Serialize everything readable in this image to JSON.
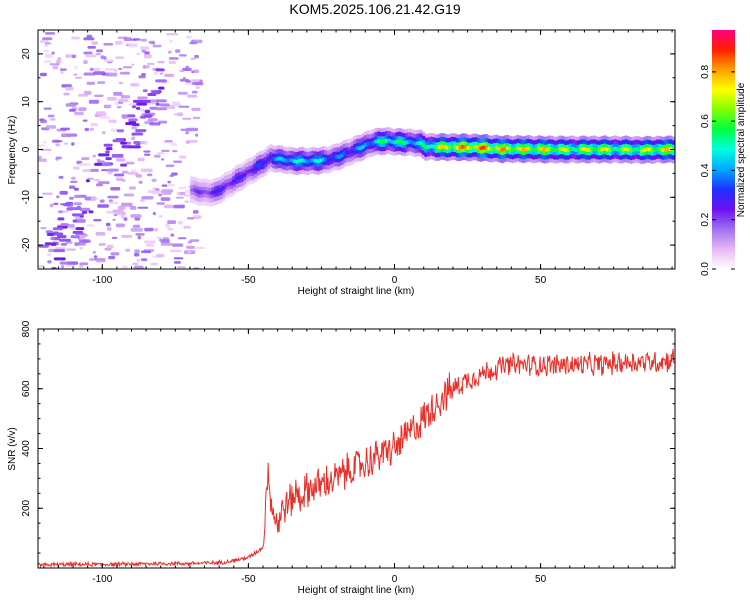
{
  "title": "KOM5.2025.106.21.42.G19",
  "chart_data": [
    {
      "type": "heatmap",
      "title": "KOM5.2025.106.21.42.G19",
      "xlabel": "Height of straight line (km)",
      "ylabel": "Frequency (Hz)",
      "xlim": [
        -122,
        96
      ],
      "ylim": [
        -25,
        25
      ],
      "xticks": [
        "-100",
        "-50",
        "0",
        "50"
      ],
      "xtick_values": [
        -100,
        -50,
        0,
        50
      ],
      "yticks": [
        "-20",
        "-10",
        "0",
        "10",
        "20"
      ],
      "ytick_values": [
        -20,
        -10,
        0,
        10,
        20
      ],
      "colorbar": {
        "label": "Normalized spectral amplitude",
        "range": [
          0,
          0.97
        ],
        "ticks": [
          "0.0",
          "0.2",
          "0.4",
          "0.6",
          "0.8"
        ],
        "tick_values": [
          0.0,
          0.2,
          0.4,
          0.6,
          0.8
        ],
        "colormap": [
          "#ffffff",
          "#e6b8f5",
          "#a070f0",
          "#6a10f0",
          "#2030ff",
          "#00a8ff",
          "#00ffe0",
          "#00ff40",
          "#80ff00",
          "#ffff00",
          "#ffa000",
          "#ff2000",
          "#ff0080"
        ]
      },
      "ridge": {
        "x": [
          -70,
          -66,
          -62,
          -58,
          -54,
          -50,
          -46,
          -43,
          -40,
          -36,
          -32,
          -28,
          -24,
          -20,
          -16,
          -12,
          -8,
          -4,
          0,
          4,
          8,
          10,
          14,
          20,
          28,
          36,
          44,
          52,
          60,
          68,
          76,
          84,
          92,
          96
        ],
        "freq": [
          -8.5,
          -9.0,
          -9.0,
          -7.5,
          -6.0,
          -4.5,
          -3.0,
          -1.8,
          -2.0,
          -2.4,
          -2.4,
          -2.4,
          -2.2,
          -1.5,
          -0.5,
          0.5,
          1.5,
          1.8,
          1.6,
          1.5,
          1.3,
          0.6,
          0.5,
          0.5,
          0.4,
          0.1,
          0.1,
          0.0,
          0.0,
          0.0,
          0.0,
          -0.1,
          0.0,
          0.0
        ],
        "amplitude": [
          0.2,
          0.25,
          0.3,
          0.3,
          0.3,
          0.32,
          0.35,
          0.4,
          0.45,
          0.55,
          0.5,
          0.55,
          0.45,
          0.4,
          0.4,
          0.45,
          0.5,
          0.6,
          0.6,
          0.55,
          0.5,
          0.6,
          0.75,
          0.85,
          0.9,
          0.85,
          0.8,
          0.8,
          0.7,
          0.8,
          0.7,
          0.75,
          0.8,
          0.8
        ]
      },
      "noise_region_x": [
        -122,
        -68
      ]
    },
    {
      "type": "line",
      "xlabel": "Height of straight line (km)",
      "ylabel": "SNR (v/v)",
      "xlim": [
        -122,
        96
      ],
      "ylim": [
        0,
        800
      ],
      "xticks": [
        "-100",
        "-50",
        "0",
        "50"
      ],
      "xtick_values": [
        -100,
        -50,
        0,
        50
      ],
      "yticks": [
        "200",
        "400",
        "600",
        "800"
      ],
      "ytick_values": [
        200,
        400,
        600,
        800
      ],
      "color": "#e8302a",
      "series": [
        {
          "x": [
            -122,
            -110,
            -100,
            -90,
            -80,
            -70,
            -60,
            -55,
            -50,
            -47,
            -45,
            -44,
            -43,
            -42,
            -41,
            -40,
            -38,
            -36,
            -34,
            -32,
            -30,
            -28,
            -25,
            -22,
            -20,
            -15,
            -10,
            -5,
            0,
            5,
            10,
            15,
            20,
            25,
            30,
            35,
            40,
            50,
            60,
            70,
            80,
            90,
            96
          ],
          "y": [
            10,
            12,
            12,
            13,
            15,
            15,
            18,
            25,
            35,
            55,
            70,
            250,
            320,
            210,
            170,
            150,
            200,
            220,
            250,
            240,
            260,
            270,
            280,
            290,
            300,
            330,
            350,
            380,
            400,
            450,
            500,
            560,
            600,
            630,
            650,
            670,
            680,
            680,
            680,
            680,
            690,
            690,
            700
          ]
        }
      ]
    }
  ]
}
